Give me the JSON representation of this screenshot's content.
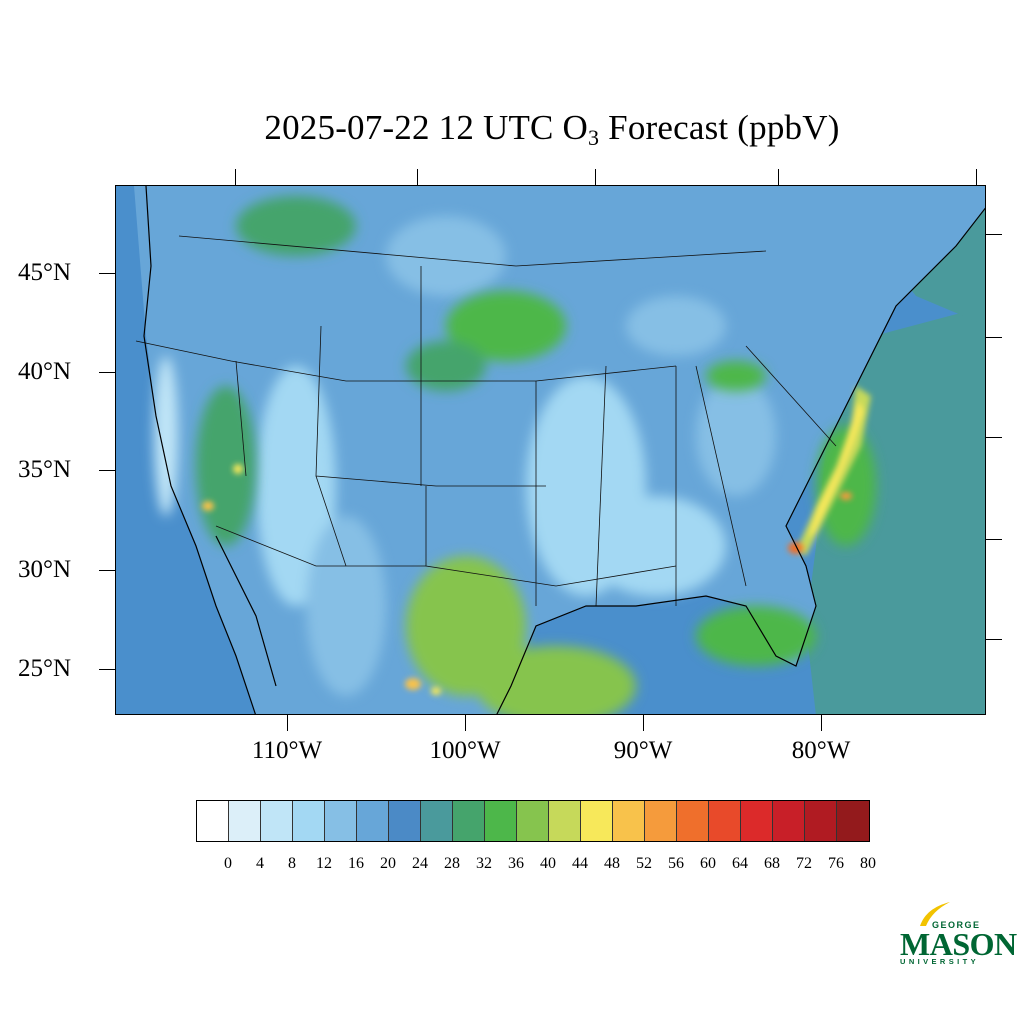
{
  "title": {
    "prefix": "2025-07-22 12 UTC O",
    "subscript": "3",
    "suffix": " Forecast (ppbV)"
  },
  "map": {
    "lat_labels": [
      "45°N",
      "40°N",
      "35°N",
      "30°N",
      "25°N"
    ],
    "lon_labels": [
      "110°W",
      "100°W",
      "90°W",
      "80°W"
    ],
    "ocean_color": "#4a8fcc",
    "boundary_color": "#111111"
  },
  "colorbar": {
    "colors": [
      "#ffffff",
      "#dceff9",
      "#c0e5f7",
      "#a3d8f3",
      "#86bfe5",
      "#67a6d8",
      "#4b8ac6",
      "#4a9a9c",
      "#45a46c",
      "#4db74a",
      "#86c44e",
      "#c6d95a",
      "#f7e85a",
      "#f8c24b",
      "#f59b3c",
      "#ef6f2c",
      "#e84a2a",
      "#dc2a2a",
      "#c81f28",
      "#b01b22",
      "#931a1c"
    ],
    "labels": [
      "0",
      "4",
      "8",
      "12",
      "16",
      "20",
      "24",
      "28",
      "32",
      "36",
      "40",
      "44",
      "48",
      "52",
      "56",
      "60",
      "64",
      "68",
      "72",
      "76",
      "80"
    ]
  },
  "logo": {
    "line1": "GEORGE",
    "line2": "MASON",
    "line3": "UNIVERSITY",
    "color": "#006633",
    "accent": "#f2c300"
  }
}
